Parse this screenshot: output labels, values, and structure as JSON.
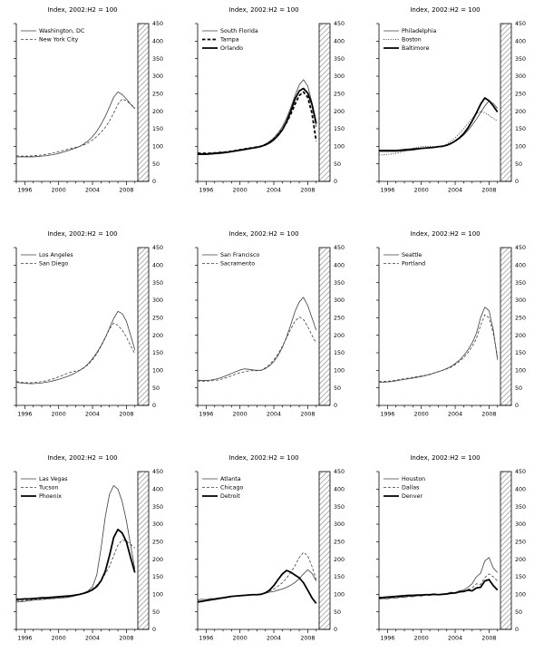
{
  "colors": {
    "line": "#3f3f3f",
    "thick_line": "#000000",
    "hatch": "#8f8f8f",
    "axis": "#000000",
    "text": "#000000"
  },
  "chart_data": [
    {
      "type": "line",
      "title": "Index, 2002:H2 = 100",
      "x_start": 1995,
      "x_step": 0.5,
      "x_ticks": [
        1996,
        2000,
        2004,
        2008
      ],
      "ylim": [
        0,
        450
      ],
      "y_tick_step": 50,
      "legend_position": "top-left",
      "shaded_region": {
        "location": "right-edge",
        "style": "diagonal-hatch"
      },
      "series": [
        {
          "name": "Washington, DC",
          "style": "solid",
          "values": [
            70,
            70,
            70,
            70,
            70,
            71,
            72,
            73,
            75,
            77,
            80,
            83,
            87,
            91,
            95,
            100,
            107,
            116,
            128,
            143,
            162,
            185,
            212,
            240,
            255,
            248,
            235,
            220,
            207
          ]
        },
        {
          "name": "New York City",
          "style": "dashed",
          "values": [
            73,
            72,
            72,
            72,
            73,
            74,
            75,
            77,
            79,
            82,
            85,
            88,
            91,
            94,
            97,
            100,
            104,
            110,
            118,
            128,
            140,
            154,
            172,
            195,
            220,
            235,
            230,
            220,
            210
          ]
        }
      ]
    },
    {
      "type": "line",
      "title": "Index, 2002:H2 = 100",
      "x_start": 1995,
      "x_step": 0.5,
      "x_ticks": [
        1996,
        2000,
        2004,
        2008
      ],
      "ylim": [
        0,
        450
      ],
      "y_tick_step": 50,
      "legend_position": "top-left",
      "shaded_region": {
        "location": "right-edge",
        "style": "diagonal-hatch"
      },
      "series": [
        {
          "name": "South Florida",
          "style": "solid",
          "values": [
            76,
            76,
            76,
            77,
            78,
            79,
            80,
            82,
            84,
            86,
            88,
            90,
            92,
            95,
            97,
            100,
            106,
            114,
            124,
            138,
            156,
            180,
            210,
            245,
            275,
            290,
            272,
            225,
            155
          ]
        },
        {
          "name": "Tampa",
          "style": "thick-dashed",
          "values": [
            80,
            80,
            80,
            80,
            81,
            82,
            83,
            84,
            86,
            88,
            90,
            92,
            94,
            96,
            98,
            100,
            105,
            112,
            121,
            133,
            148,
            168,
            192,
            220,
            245,
            255,
            240,
            195,
            115
          ]
        },
        {
          "name": "Orlando",
          "style": "thick",
          "values": [
            78,
            78,
            78,
            79,
            80,
            81,
            82,
            83,
            85,
            87,
            89,
            91,
            93,
            95,
            97,
            100,
            104,
            110,
            119,
            131,
            147,
            170,
            200,
            235,
            258,
            265,
            252,
            220,
            165
          ]
        }
      ]
    },
    {
      "type": "line",
      "title": "Index, 2002:H2 = 100",
      "x_start": 1995,
      "x_step": 0.5,
      "x_ticks": [
        1996,
        2000,
        2004,
        2008
      ],
      "ylim": [
        0,
        450
      ],
      "y_tick_step": 50,
      "legend_position": "top-left",
      "shaded_region": {
        "location": "right-edge",
        "style": "diagonal-hatch"
      },
      "series": [
        {
          "name": "Philadelphia",
          "style": "solid",
          "values": [
            85,
            85,
            85,
            85,
            85,
            86,
            87,
            88,
            89,
            91,
            93,
            95,
            96,
            98,
            99,
            100,
            103,
            108,
            114,
            122,
            132,
            145,
            160,
            177,
            196,
            215,
            230,
            222,
            208
          ]
        },
        {
          "name": "Boston",
          "style": "dotted",
          "values": [
            75,
            76,
            77,
            78,
            80,
            83,
            86,
            90,
            94,
            97,
            99,
            100,
            100,
            99,
            99,
            100,
            106,
            114,
            124,
            136,
            150,
            165,
            180,
            192,
            200,
            196,
            188,
            180,
            172
          ]
        },
        {
          "name": "Baltimore",
          "style": "thick",
          "values": [
            88,
            88,
            88,
            88,
            88,
            89,
            90,
            91,
            92,
            93,
            94,
            95,
            96,
            97,
            99,
            100,
            103,
            108,
            115,
            124,
            136,
            152,
            172,
            195,
            220,
            238,
            230,
            215,
            198
          ]
        }
      ]
    },
    {
      "type": "line",
      "title": "Index, 2002:H2 = 100",
      "x_start": 1995,
      "x_step": 0.5,
      "x_ticks": [
        1996,
        2000,
        2004,
        2008
      ],
      "ylim": [
        0,
        450
      ],
      "y_tick_step": 50,
      "legend_position": "top-left",
      "shaded_region": {
        "location": "right-edge",
        "style": "diagonal-hatch"
      },
      "series": [
        {
          "name": "Los Angeles",
          "style": "solid",
          "values": [
            66,
            64,
            63,
            62,
            62,
            63,
            64,
            66,
            68,
            71,
            74,
            78,
            82,
            87,
            93,
            100,
            108,
            119,
            133,
            150,
            170,
            193,
            220,
            248,
            268,
            262,
            240,
            200,
            158
          ]
        },
        {
          "name": "San Diego",
          "style": "dashed",
          "values": [
            68,
            66,
            65,
            64,
            65,
            66,
            68,
            70,
            73,
            77,
            81,
            86,
            91,
            95,
            98,
            100,
            107,
            117,
            130,
            147,
            168,
            192,
            218,
            235,
            228,
            215,
            195,
            170,
            148
          ]
        }
      ]
    },
    {
      "type": "line",
      "title": "Index, 2002:H2 = 100",
      "x_start": 1995,
      "x_step": 0.5,
      "x_ticks": [
        1996,
        2000,
        2004,
        2008
      ],
      "ylim": [
        0,
        450
      ],
      "y_tick_step": 50,
      "legend_position": "top-left",
      "shaded_region": {
        "location": "right-edge",
        "style": "diagonal-hatch"
      },
      "series": [
        {
          "name": "San Francisco",
          "style": "solid",
          "values": [
            72,
            71,
            71,
            72,
            74,
            77,
            81,
            86,
            91,
            96,
            101,
            104,
            103,
            101,
            100,
            100,
            105,
            113,
            125,
            142,
            165,
            195,
            230,
            268,
            295,
            308,
            285,
            250,
            215
          ]
        },
        {
          "name": "Sacramento",
          "style": "dashed",
          "values": [
            70,
            69,
            69,
            70,
            71,
            73,
            76,
            80,
            84,
            89,
            93,
            96,
            98,
            99,
            99,
            100,
            107,
            117,
            130,
            147,
            168,
            192,
            218,
            240,
            252,
            245,
            225,
            200,
            178
          ]
        }
      ]
    },
    {
      "type": "line",
      "title": "Index, 2002:H2 = 100",
      "x_start": 1995,
      "x_step": 0.5,
      "x_ticks": [
        1996,
        2000,
        2004,
        2008
      ],
      "ylim": [
        0,
        450
      ],
      "y_tick_step": 50,
      "legend_position": "top-left",
      "shaded_region": {
        "location": "right-edge",
        "style": "diagonal-hatch"
      },
      "series": [
        {
          "name": "Seattle",
          "style": "solid",
          "values": [
            66,
            66,
            67,
            68,
            70,
            72,
            74,
            76,
            78,
            80,
            82,
            85,
            88,
            92,
            96,
            100,
            105,
            111,
            119,
            129,
            142,
            158,
            178,
            205,
            250,
            280,
            270,
            215,
            130
          ]
        },
        {
          "name": "Portland",
          "style": "dashed",
          "values": [
            68,
            68,
            69,
            70,
            72,
            74,
            76,
            78,
            80,
            82,
            84,
            86,
            89,
            92,
            96,
            100,
            104,
            109,
            116,
            125,
            136,
            150,
            168,
            190,
            228,
            258,
            250,
            205,
            140
          ]
        }
      ]
    },
    {
      "type": "line",
      "title": "Index, 2002:H2 = 100",
      "x_start": 1995,
      "x_step": 0.5,
      "x_ticks": [
        1996,
        2000,
        2004,
        2008
      ],
      "ylim": [
        0,
        450
      ],
      "y_tick_step": 50,
      "legend_position": "top-left",
      "shaded_region": {
        "location": "right-edge",
        "style": "diagonal-hatch"
      },
      "series": [
        {
          "name": "Las Vegas",
          "style": "solid",
          "values": [
            78,
            79,
            80,
            82,
            83,
            84,
            85,
            86,
            87,
            88,
            89,
            90,
            91,
            93,
            96,
            100,
            104,
            110,
            122,
            155,
            230,
            320,
            385,
            410,
            400,
            365,
            310,
            240,
            172
          ]
        },
        {
          "name": "Tucson",
          "style": "dashed",
          "values": [
            82,
            82,
            83,
            84,
            85,
            86,
            87,
            88,
            89,
            90,
            91,
            92,
            93,
            95,
            97,
            100,
            104,
            109,
            116,
            126,
            140,
            158,
            180,
            210,
            240,
            255,
            252,
            243,
            232
          ]
        },
        {
          "name": "Phoenix",
          "style": "thick",
          "values": [
            86,
            86,
            87,
            87,
            88,
            89,
            90,
            90,
            91,
            92,
            93,
            94,
            95,
            96,
            98,
            100,
            103,
            107,
            113,
            122,
            138,
            165,
            210,
            262,
            285,
            275,
            250,
            205,
            162
          ]
        }
      ]
    },
    {
      "type": "line",
      "title": "Index, 2002:H2 = 100",
      "x_start": 1995,
      "x_step": 0.5,
      "x_ticks": [
        1996,
        2000,
        2004,
        2008
      ],
      "ylim": [
        0,
        450
      ],
      "y_tick_step": 50,
      "legend_position": "top-left",
      "shaded_region": {
        "location": "right-edge",
        "style": "diagonal-hatch"
      },
      "series": [
        {
          "name": "Atlanta",
          "style": "solid",
          "values": [
            84,
            86,
            85,
            88,
            88,
            90,
            90,
            93,
            93,
            95,
            96,
            98,
            98,
            99,
            99,
            100,
            103,
            106,
            108,
            112,
            115,
            120,
            126,
            134,
            145,
            158,
            170,
            160,
            138
          ]
        },
        {
          "name": "Chicago",
          "style": "dashed",
          "values": [
            80,
            81,
            82,
            84,
            85,
            87,
            89,
            91,
            93,
            95,
            96,
            97,
            98,
            99,
            99,
            100,
            104,
            109,
            115,
            123,
            133,
            146,
            162,
            182,
            205,
            220,
            210,
            180,
            142
          ]
        },
        {
          "name": "Detroit",
          "style": "thick",
          "values": [
            78,
            80,
            82,
            84,
            86,
            88,
            90,
            92,
            94,
            95,
            96,
            97,
            98,
            99,
            99,
            100,
            104,
            112,
            125,
            142,
            158,
            168,
            163,
            155,
            147,
            133,
            112,
            90,
            74
          ]
        }
      ]
    },
    {
      "type": "line",
      "title": "Index, 2002:H2 = 100",
      "x_start": 1995,
      "x_step": 0.5,
      "x_ticks": [
        1996,
        2000,
        2004,
        2008
      ],
      "ylim": [
        0,
        450
      ],
      "y_tick_step": 50,
      "legend_position": "top-left",
      "shaded_region": {
        "location": "right-edge",
        "style": "diagonal-hatch"
      },
      "series": [
        {
          "name": "Houston",
          "style": "solid",
          "values": [
            86,
            88,
            87,
            90,
            89,
            92,
            91,
            94,
            93,
            96,
            95,
            98,
            97,
            100,
            98,
            100,
            102,
            106,
            104,
            110,
            112,
            120,
            130,
            150,
            160,
            195,
            205,
            175,
            162
          ]
        },
        {
          "name": "Dallas",
          "style": "dashed",
          "values": [
            88,
            90,
            89,
            91,
            90,
            93,
            92,
            95,
            94,
            96,
            95,
            98,
            97,
            99,
            98,
            100,
            101,
            104,
            102,
            106,
            108,
            114,
            118,
            130,
            128,
            148,
            158,
            150,
            138
          ]
        },
        {
          "name": "Denver",
          "style": "thick",
          "values": [
            90,
            91,
            92,
            93,
            94,
            95,
            96,
            97,
            97,
            98,
            98,
            99,
            99,
            100,
            99,
            100,
            101,
            103,
            104,
            107,
            108,
            112,
            110,
            118,
            120,
            138,
            142,
            125,
            112
          ]
        }
      ]
    }
  ]
}
